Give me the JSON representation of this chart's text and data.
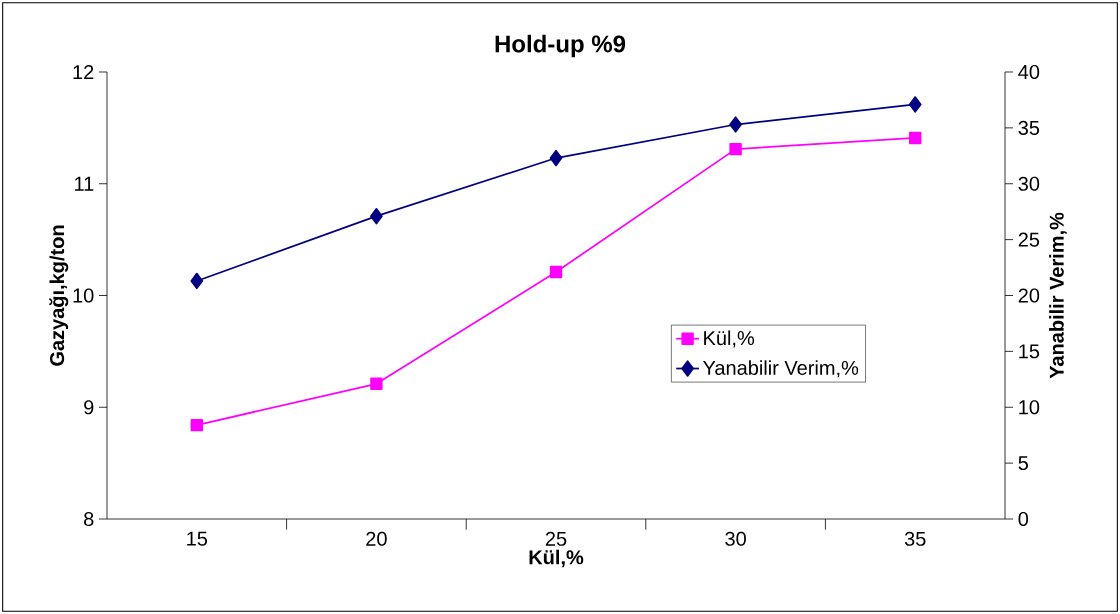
{
  "chart_data": {
    "type": "line",
    "title": "Hold-up %9",
    "xlabel": "Kül,%",
    "ylabel": "Gazyağı,kg/ton",
    "y2label": "Yanabilir Verim,%",
    "categories": [
      "15",
      "20",
      "25",
      "30",
      "35"
    ],
    "ylim": [
      8,
      12
    ],
    "yticks": [
      8,
      9,
      10,
      11,
      12
    ],
    "y2lim": [
      0,
      40
    ],
    "y2ticks": [
      0,
      5,
      10,
      15,
      20,
      25,
      30,
      35,
      40
    ],
    "legend": "right",
    "series": [
      {
        "name": "Kül,%",
        "color": "#ff00ff",
        "marker": "square",
        "axis": "y",
        "values": [
          8.84,
          9.21,
          10.21,
          11.31,
          11.41
        ]
      },
      {
        "name": "Yanabilir Verim,%",
        "color": "#000080",
        "marker": "diamond",
        "axis": "y2",
        "values": [
          21.3,
          27.1,
          32.3,
          35.3,
          37.1
        ]
      }
    ]
  }
}
